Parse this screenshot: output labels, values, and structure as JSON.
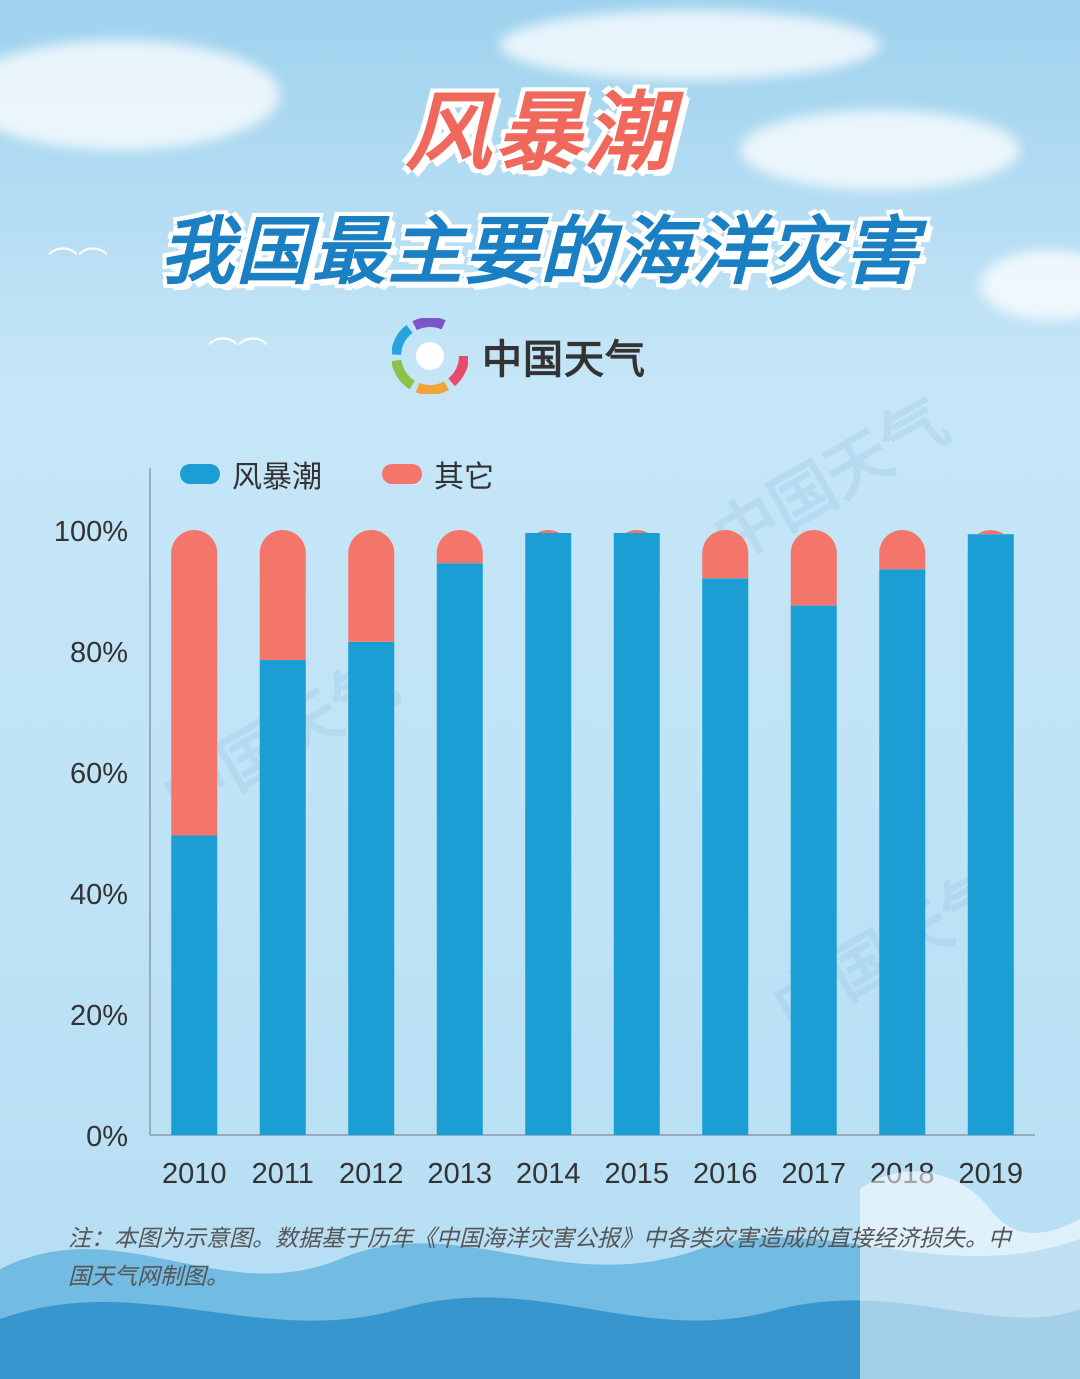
{
  "header": {
    "title": "风暴潮",
    "subtitle": "我国最主要的海洋灾害",
    "brand": "中国天气",
    "watermark": "中国天气"
  },
  "legend": [
    {
      "label": "风暴潮",
      "color": "#1a9ed4"
    },
    {
      "label": "其它",
      "color": "#f4766a"
    }
  ],
  "note": "注：本图为示意图。数据基于历年《中国海洋灾害公报》中各类灾害造成的直接经济损失。中国天气网制图。",
  "chart_data": {
    "type": "bar",
    "stacked": true,
    "categories": [
      "2010",
      "2011",
      "2012",
      "2013",
      "2014",
      "2015",
      "2016",
      "2017",
      "2018",
      "2019"
    ],
    "series": [
      {
        "name": "风暴潮",
        "color": "#1a9ed4",
        "values": [
          49.5,
          78.5,
          81.5,
          94.5,
          99.5,
          99.5,
          92,
          87.5,
          93.5,
          99.3
        ]
      },
      {
        "name": "其它",
        "color": "#f4766a",
        "values": [
          50.5,
          21.5,
          18.5,
          5.5,
          0.5,
          0.5,
          8,
          12.5,
          6.5,
          0.7
        ]
      }
    ],
    "yticks": [
      "0%",
      "20%",
      "40%",
      "60%",
      "80%",
      "100%"
    ],
    "ylim": [
      0,
      100
    ],
    "grid": false,
    "legend_position": "top-left"
  }
}
